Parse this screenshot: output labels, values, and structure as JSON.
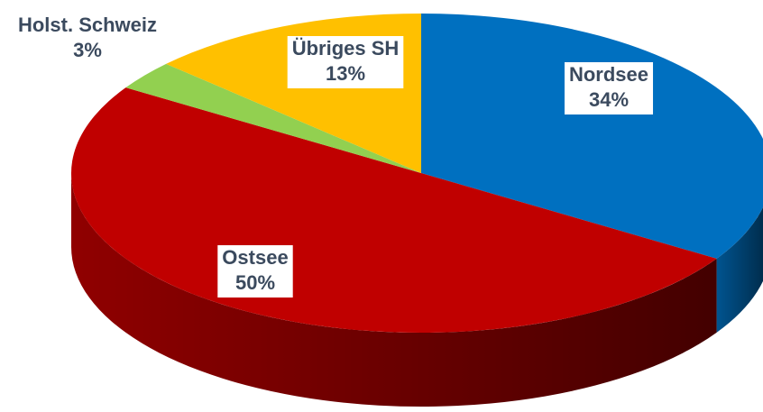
{
  "chart_data": {
    "type": "pie",
    "categories": [
      "Nordsee",
      "Ostsee",
      "Holst. Schweiz",
      "Übriges SH"
    ],
    "values": [
      34,
      50,
      3,
      13
    ],
    "value_labels": [
      "34%",
      "50%",
      "3%",
      "13%"
    ],
    "colors": [
      "#0070c0",
      "#c00000",
      "#92d050",
      "#ffc000"
    ],
    "three_d": true
  }
}
